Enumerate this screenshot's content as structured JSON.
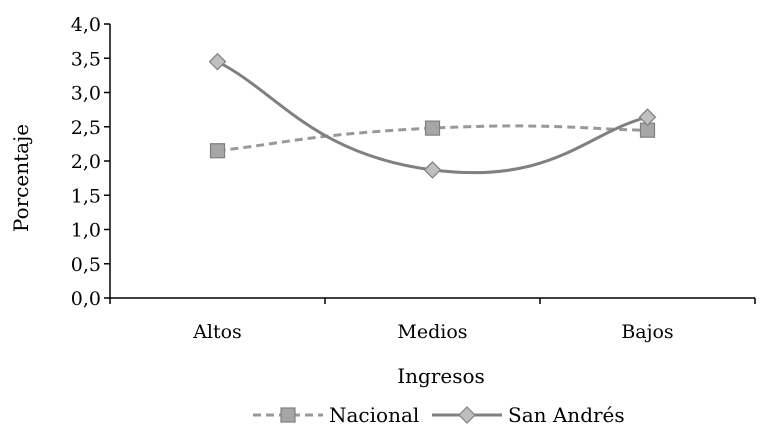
{
  "chart_data": {
    "type": "line",
    "categories": [
      "Altos",
      "Medios",
      "Bajos"
    ],
    "series": [
      {
        "name": "Nacional",
        "values": [
          2.15,
          2.48,
          2.45
        ],
        "color": "#999999",
        "line_style": "dashed",
        "marker": "square"
      },
      {
        "name": "San Andrés",
        "values": [
          3.45,
          1.87,
          2.64
        ],
        "color": "#808080",
        "line_style": "solid",
        "marker": "diamond"
      }
    ],
    "xlabel": "Ingresos",
    "ylabel": "Porcentaje",
    "ylim": [
      0,
      4
    ],
    "yticks": [
      "0,0",
      "0,5",
      "1,0",
      "1,5",
      "2,0",
      "2,5",
      "3,0",
      "3,5",
      "4,0"
    ],
    "grid": false,
    "legend_position": "bottom"
  }
}
